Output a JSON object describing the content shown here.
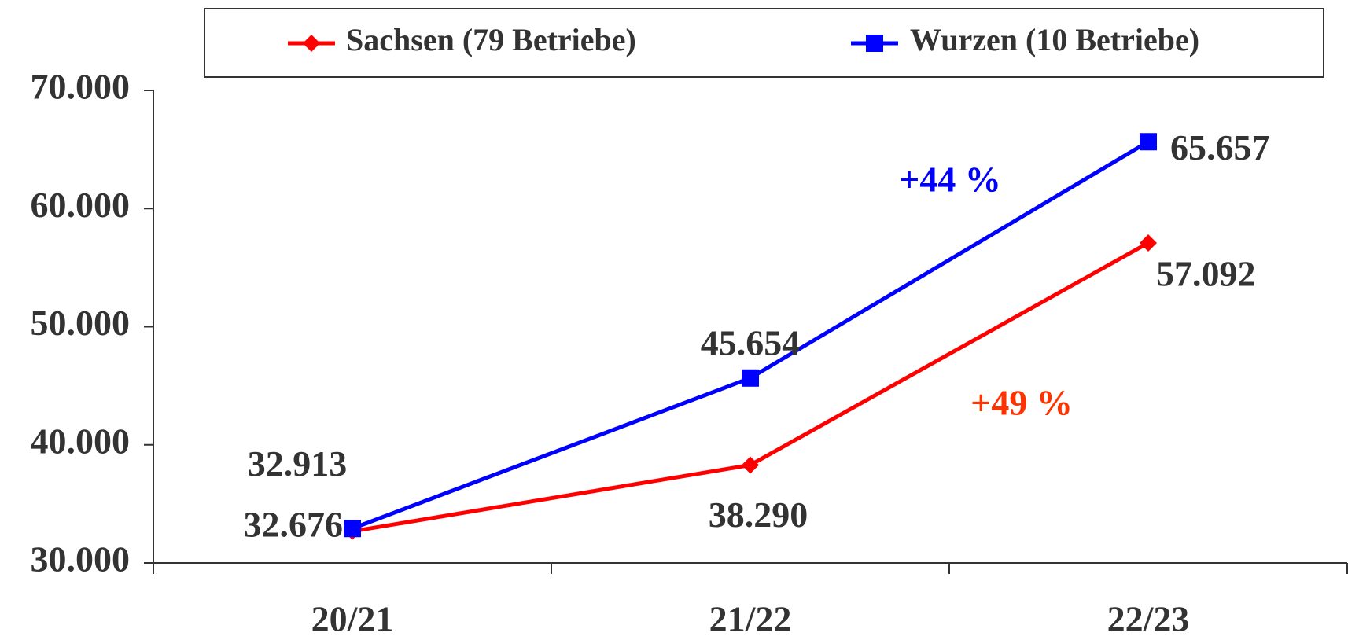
{
  "chart_data": {
    "type": "line",
    "categories": [
      "20/21",
      "21/22",
      "22/23"
    ],
    "series": [
      {
        "name": "Sachsen (79 Betriebe)",
        "color": "#ff0000",
        "marker": "diamond",
        "values": [
          32676,
          38290,
          57092
        ],
        "value_labels": [
          "32.676",
          "38.290",
          "57.092"
        ]
      },
      {
        "name": "Wurzen (10 Betriebe)",
        "color": "#0000ff",
        "marker": "square",
        "values": [
          32913,
          45654,
          65657
        ],
        "value_labels": [
          "32.913",
          "45.654",
          "65.657"
        ]
      }
    ],
    "ylim": [
      30000,
      70000
    ],
    "yticks": [
      {
        "value": 30000,
        "label": "30.000"
      },
      {
        "value": 40000,
        "label": "40.000"
      },
      {
        "value": 50000,
        "label": "50.000"
      },
      {
        "value": 60000,
        "label": "60.000"
      },
      {
        "value": 70000,
        "label": "70.000"
      }
    ],
    "annotations": [
      {
        "text": "+44 %",
        "color": "#0000ff"
      },
      {
        "text": "+49 %",
        "color": "#ff3300"
      }
    ],
    "legend": "top"
  }
}
